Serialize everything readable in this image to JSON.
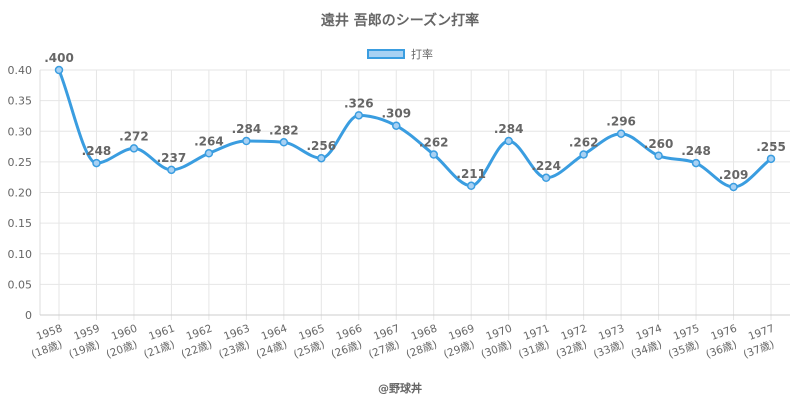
{
  "title": "遠井 吾郎のシーズン打率",
  "legend_label": "打率",
  "credit": "@野球丼",
  "colors": {
    "line": "#3a9de0",
    "fill": "#a8d1f3",
    "grid": "#e6e6e6",
    "text": "#666666"
  },
  "chart_data": {
    "type": "line",
    "title": "遠井 吾郎のシーズン打率",
    "xlabel": "",
    "ylabel": "",
    "ylim": [
      0,
      0.4
    ],
    "y_ticks": [
      "0",
      "0.05",
      "0.10",
      "0.15",
      "0.20",
      "0.25",
      "0.30",
      "0.35",
      "0.40"
    ],
    "categories": [
      "1958",
      "1959",
      "1960",
      "1961",
      "1962",
      "1963",
      "1964",
      "1965",
      "1966",
      "1967",
      "1968",
      "1969",
      "1970",
      "1971",
      "1972",
      "1973",
      "1974",
      "1975",
      "1976",
      "1977"
    ],
    "category_sublabels": [
      "(18歳)",
      "(19歳)",
      "(20歳)",
      "(21歳)",
      "(22歳)",
      "(23歳)",
      "(24歳)",
      "(25歳)",
      "(26歳)",
      "(27歳)",
      "(28歳)",
      "(29歳)",
      "(30歳)",
      "(31歳)",
      "(32歳)",
      "(33歳)",
      "(34歳)",
      "(35歳)",
      "(36歳)",
      "(37歳)"
    ],
    "series": [
      {
        "name": "打率",
        "values": [
          0.4,
          0.248,
          0.272,
          0.237,
          0.264,
          0.284,
          0.282,
          0.256,
          0.326,
          0.309,
          0.262,
          0.211,
          0.284,
          0.224,
          0.262,
          0.296,
          0.26,
          0.248,
          0.209,
          0.255
        ],
        "data_labels": [
          ".400",
          ".248",
          ".272",
          ".237",
          ".264",
          ".284",
          ".282",
          ".256",
          ".326",
          ".309",
          ".262",
          ".211",
          ".284",
          ".224",
          ".262",
          ".296",
          ".260",
          ".248",
          ".209",
          ".255"
        ]
      }
    ],
    "grid": true,
    "legend_position": "top"
  }
}
